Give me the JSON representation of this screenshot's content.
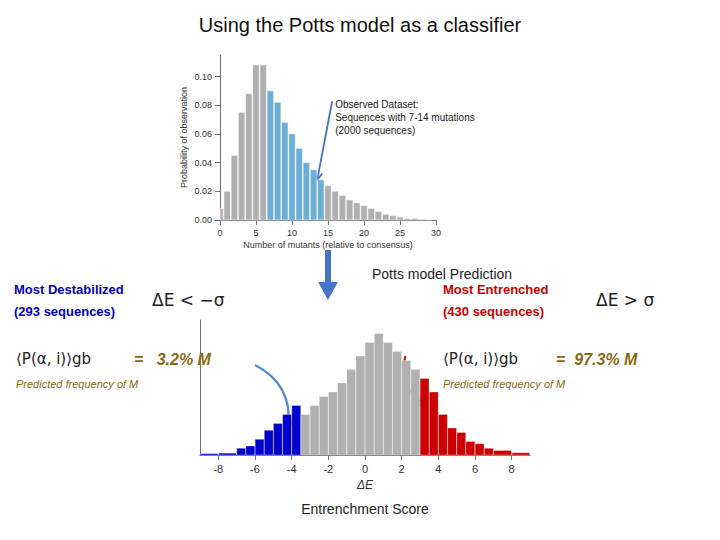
{
  "chart_data": [
    {
      "type": "bar",
      "title": "Using the Potts model as a classifier",
      "x": [
        0,
        1,
        2,
        3,
        4,
        5,
        6,
        7,
        8,
        9,
        10,
        11,
        12,
        13,
        14,
        15,
        16,
        17,
        18,
        19,
        20,
        21,
        22,
        23,
        24,
        25,
        26,
        27,
        28,
        29
      ],
      "values": [
        0.008,
        0.02,
        0.045,
        0.075,
        0.088,
        0.108,
        0.108,
        0.09,
        0.082,
        0.068,
        0.06,
        0.05,
        0.04,
        0.035,
        0.028,
        0.024,
        0.02,
        0.017,
        0.014,
        0.012,
        0.01,
        0.008,
        0.006,
        0.004,
        0.003,
        0.002,
        0.001,
        0.001,
        0.0005,
        0.0002
      ],
      "colors": [
        "#b0b0b0",
        "#b0b0b0",
        "#b0b0b0",
        "#b0b0b0",
        "#b0b0b0",
        "#b0b0b0",
        "#b0b0b0",
        "#6baed6",
        "#6baed6",
        "#6baed6",
        "#6baed6",
        "#6baed6",
        "#6baed6",
        "#6baed6",
        "#6baed6",
        "#b0b0b0",
        "#b0b0b0",
        "#b0b0b0",
        "#b0b0b0",
        "#b0b0b0",
        "#b0b0b0",
        "#b0b0b0",
        "#b0b0b0",
        "#b0b0b0",
        "#b0b0b0",
        "#b0b0b0",
        "#b0b0b0",
        "#b0b0b0",
        "#b0b0b0",
        "#b0b0b0"
      ],
      "xlabel": "Number of mutants (relative to consensus)",
      "ylabel": "Probability of observation",
      "xlim": [
        0,
        30
      ],
      "ylim": [
        0,
        0.115
      ],
      "xticks": [
        0,
        5,
        10,
        15,
        20,
        25,
        30
      ],
      "yticks": [
        {
          "value": 0,
          "label": "0.00"
        },
        {
          "value": 0.02,
          "label": "0.02"
        },
        {
          "value": 0.04,
          "label": "0.04"
        },
        {
          "value": 0.06,
          "label": "0.06"
        },
        {
          "value": 0.08,
          "label": "0.08"
        },
        {
          "value": 0.1,
          "label": "0.10"
        }
      ],
      "grid": false,
      "annotations": [
        {
          "text": "Observed Dataset:\nSequences with 7-14 mutations\n(2000 sequences)",
          "xy": [
            13.5,
            0.028
          ],
          "xytext": [
            16,
            0.085
          ],
          "color": "#4472c4"
        }
      ]
    },
    {
      "type": "histogram",
      "bins": [
        -9,
        -8,
        -7,
        -6.5,
        -6,
        -5.5,
        -5,
        -4.5,
        -4,
        -3.5,
        -3,
        -2.5,
        -2,
        -1.5,
        -1,
        -0.5,
        0,
        0.5,
        1,
        1.5,
        2,
        2.5,
        3,
        3.5,
        4,
        4.5,
        5,
        5.5,
        6,
        6.5,
        7,
        8,
        9
      ],
      "values": [
        0.003,
        0.004,
        0.015,
        0.02,
        0.035,
        0.055,
        0.07,
        0.09,
        0.11,
        0.09,
        0.11,
        0.13,
        0.14,
        0.16,
        0.19,
        0.22,
        0.25,
        0.27,
        0.25,
        0.23,
        0.21,
        0.19,
        0.17,
        0.14,
        0.09,
        0.06,
        0.05,
        0.03,
        0.025,
        0.015,
        0.01,
        0.005
      ],
      "colors": [
        "#0000cc",
        "#0000cc",
        "#0000cc",
        "#0000cc",
        "#0000cc",
        "#0000cc",
        "#0000cc",
        "#0000cc",
        "#0000cc",
        "#b0b0b0",
        "#b0b0b0",
        "#b0b0b0",
        "#b0b0b0",
        "#b0b0b0",
        "#b0b0b0",
        "#b0b0b0",
        "#b0b0b0",
        "#b0b0b0",
        "#b0b0b0",
        "#b0b0b0",
        "#b0b0b0",
        "#b0b0b0",
        "#cc0000",
        "#cc0000",
        "#cc0000",
        "#cc0000",
        "#cc0000",
        "#cc0000",
        "#cc0000",
        "#cc0000",
        "#cc0000",
        "#cc0000"
      ],
      "xlabel": "ΔE",
      "xlim": [
        -9,
        9
      ],
      "ylim": [
        0,
        0.3
      ],
      "xticks": [
        -8,
        -6,
        -4,
        -2,
        0,
        2,
        4,
        6,
        8
      ],
      "tick_labels": "x",
      "grid": false,
      "annotations": [
        {
          "text": "Potts model Prediction"
        },
        {
          "text": "Entrenchment Score"
        },
        {
          "text": "Most Destabilized",
          "color": "#0000bb"
        },
        {
          "text": "(293 sequences)",
          "color": "#0000bb"
        },
        {
          "text": "ΔE < −σ"
        },
        {
          "text": "⟨P(α, i)⟩gb"
        },
        {
          "text": "=   3.2% M",
          "color": "#8B6914"
        },
        {
          "text": "Predicted frequency of M",
          "color": "#8B6914"
        },
        {
          "text": "Most Entrenched",
          "color": "#cc0000"
        },
        {
          "text": "(430 sequences)",
          "color": "#cc0000"
        },
        {
          "text": "ΔE > σ"
        },
        {
          "text": "⟨P(α, i)⟩gb"
        },
        {
          "text": "=  97.3% M",
          "color": "#8B6914"
        },
        {
          "text": "Predicted frequency of M",
          "color": "#8B6914"
        },
        {
          "xy": [
            -4.2,
            0.06
          ],
          "xytext": [
            -6.0,
            0.2
          ],
          "color": "#5588cc"
        },
        {
          "xy": [
            3.3,
            0.11
          ],
          "xytext": [
            2.2,
            0.22
          ],
          "color": "#bb2200"
        }
      ]
    }
  ]
}
